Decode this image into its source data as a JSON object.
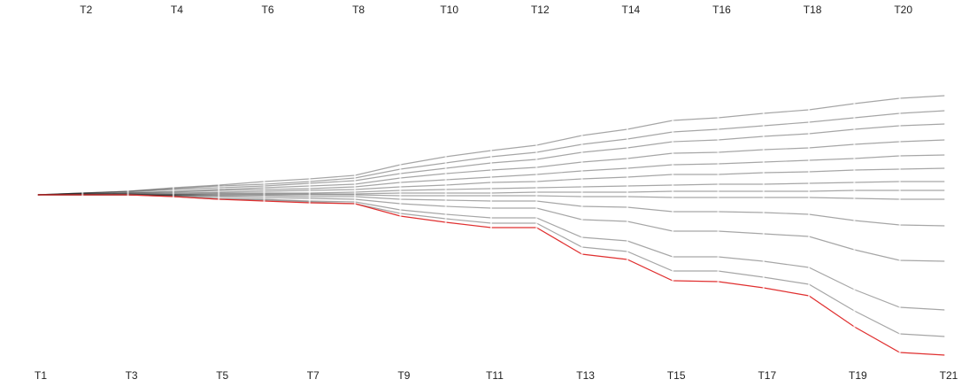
{
  "chart_data": {
    "type": "parallel-lines",
    "categories": [
      "T1",
      "T2",
      "T3",
      "T4",
      "T5",
      "T6",
      "T7",
      "T8",
      "T9",
      "T10",
      "T11",
      "T12",
      "T13",
      "T14",
      "T15",
      "T16",
      "T17",
      "T18",
      "T19",
      "T20",
      "T21"
    ],
    "ylim": [
      -185,
      115
    ],
    "series": [
      {
        "color": "#000000",
        "values": [
          0,
          2,
          4,
          8,
          11,
          15,
          18,
          22,
          34,
          43,
          50,
          56,
          67,
          74,
          84,
          87,
          92,
          96,
          103,
          109,
          112
        ]
      },
      {
        "color": "#000000",
        "values": [
          0,
          2,
          4,
          7,
          10,
          12,
          15,
          19,
          29,
          36,
          43,
          48,
          57,
          63,
          71,
          74,
          78,
          82,
          87,
          92,
          95
        ]
      },
      {
        "color": "#000000",
        "values": [
          0,
          2,
          3,
          6,
          8,
          10,
          13,
          16,
          24,
          30,
          36,
          40,
          48,
          53,
          60,
          62,
          66,
          69,
          74,
          78,
          80
        ]
      },
      {
        "color": "#000000",
        "values": [
          0,
          1,
          2,
          4,
          6,
          8,
          10,
          12,
          19,
          24,
          28,
          31,
          37,
          41,
          47,
          48,
          51,
          53,
          57,
          60,
          62
        ]
      },
      {
        "color": "#000000",
        "values": [
          0,
          1,
          2,
          3,
          5,
          6,
          7,
          9,
          14,
          17,
          20,
          23,
          27,
          30,
          34,
          35,
          37,
          39,
          41,
          44,
          45
        ]
      },
      {
        "color": "#000000",
        "values": [
          0,
          1,
          1,
          2,
          3,
          4,
          5,
          6,
          9,
          11,
          14,
          15,
          18,
          20,
          23,
          23,
          25,
          26,
          28,
          29,
          30
        ]
      },
      {
        "color": "#000000",
        "values": [
          0,
          0,
          1,
          1,
          2,
          2,
          2,
          3,
          5,
          6,
          7,
          8,
          9,
          10,
          11,
          12,
          12,
          13,
          14,
          15,
          15
        ]
      },
      {
        "color": "#000000",
        "values": [
          0,
          0,
          0,
          0,
          1,
          1,
          1,
          1,
          2,
          2,
          2,
          3,
          3,
          3,
          4,
          4,
          4,
          4,
          5,
          5,
          5
        ]
      },
      {
        "color": "#000000",
        "values": [
          0,
          0,
          0,
          0,
          0,
          0,
          0,
          0,
          -1,
          -1,
          -1,
          -1,
          -2,
          -2,
          -3,
          -3,
          -3,
          -3,
          -4,
          -5,
          -5
        ]
      },
      {
        "color": "#000000",
        "values": [
          0,
          0,
          0,
          0,
          -1,
          -1,
          -2,
          -2,
          -5,
          -6,
          -7,
          -7,
          -13,
          -14,
          -19,
          -19,
          -20,
          -22,
          -29,
          -34,
          -35
        ]
      },
      {
        "color": "#000000",
        "values": [
          0,
          0,
          0,
          -1,
          -2,
          -3,
          -4,
          -5,
          -10,
          -13,
          -15,
          -15,
          -28,
          -30,
          -41,
          -41,
          -44,
          -47,
          -62,
          -74,
          -75
        ]
      },
      {
        "color": "#000000",
        "values": [
          0,
          0,
          0,
          -1,
          -4,
          -5,
          -7,
          -8,
          -17,
          -22,
          -26,
          -26,
          -48,
          -52,
          -70,
          -70,
          -75,
          -82,
          -107,
          -127,
          -130
        ]
      },
      {
        "color": "#000000",
        "values": [
          0,
          0,
          0,
          -2,
          -5,
          -6,
          -8,
          -10,
          -21,
          -27,
          -32,
          -32,
          -59,
          -64,
          -86,
          -86,
          -93,
          -101,
          -131,
          -157,
          -160
        ]
      },
      {
        "color": "#e03030",
        "values": [
          0,
          0,
          0,
          -2,
          -5,
          -7,
          -9,
          -10,
          -24,
          -31,
          -37,
          -37,
          -67,
          -73,
          -97,
          -98,
          -105,
          -114,
          -149,
          -178,
          -181
        ]
      }
    ]
  }
}
